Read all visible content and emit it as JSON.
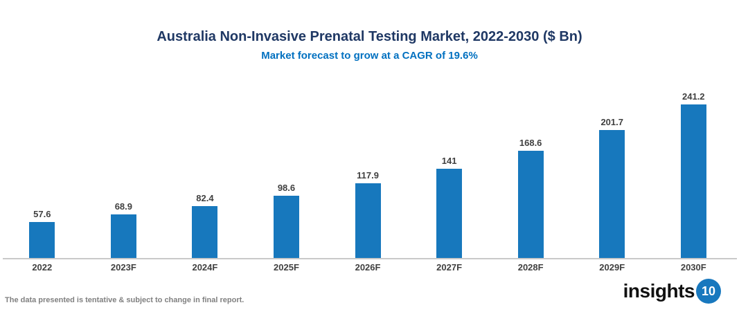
{
  "header": {
    "title": "Australia Non-Invasive Prenatal Testing Market, 2022-2030 ($ Bn)",
    "subtitle": "Market forecast to grow at a CAGR of 19.6%"
  },
  "chart_data": {
    "type": "bar",
    "title": "Australia Non-Invasive Prenatal Testing Market, 2022-2030 ($ Bn)",
    "subtitle": "Market forecast to grow at a CAGR of 19.6%",
    "cagr": "19.6%",
    "categories": [
      "2022",
      "2023F",
      "2024F",
      "2025F",
      "2026F",
      "2027F",
      "2028F",
      "2029F",
      "2030F"
    ],
    "values": [
      57.6,
      68.9,
      82.4,
      98.6,
      117.9,
      141,
      168.6,
      201.7,
      241.2
    ],
    "value_labels": [
      "57.6",
      "68.9",
      "82.4",
      "98.6",
      "117.9",
      "141",
      "168.6",
      "201.7",
      "241.2"
    ],
    "xlabel": "",
    "ylabel": "",
    "ylim": [
      0,
      250
    ],
    "grid": false,
    "legend": "none",
    "bar_color": "#1778bd",
    "value_label_position": "above-bar"
  },
  "footer": {
    "disclaimer": "The data presented is tentative & subject to change in final report.",
    "logo_text": "insights",
    "logo_number": "10"
  },
  "colors": {
    "title": "#1f3864",
    "subtitle": "#0070c0",
    "bar": "#1778bd",
    "labels": "#404040",
    "axis_line": "#c9c9c9",
    "disclaimer": "#808080",
    "logo_text": "#111111",
    "logo_circle": "#1878be"
  }
}
